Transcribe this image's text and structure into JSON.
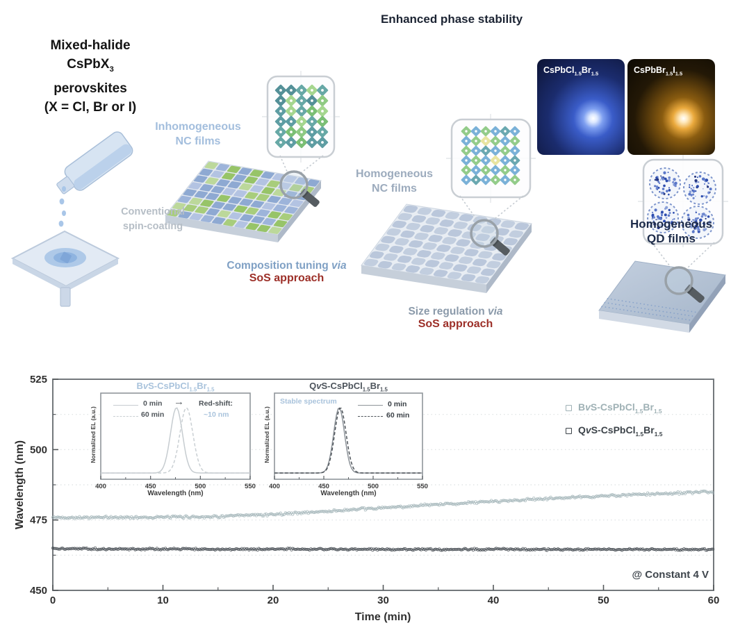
{
  "diagram": {
    "title": "Enhanced phase stability",
    "precursor_label": {
      "l1": "Mixed-halide",
      "formula": {
        "p1": "CsPbX",
        "s1": "3"
      },
      "l3": "perovskites",
      "l4": "(X = Cl, Br or I)"
    },
    "inhomogeneous_nc_label": {
      "l1": "Inhomogeneous",
      "l2": "NC films"
    },
    "conventional_label": {
      "l1": "Conventional",
      "l2": "spin-coating"
    },
    "composition_tuning": {
      "text": "Composition tuning",
      "via": "via",
      "approach": "SoS approach"
    },
    "homogeneous_nc_label": {
      "l1": "Homogeneous",
      "l2": "NC films"
    },
    "size_regulation": {
      "text": "Size regulation",
      "via": "via",
      "approach": "SoS approach"
    },
    "homogeneous_qd_label": {
      "l1": "Homogeneous",
      "l2": "QD films"
    },
    "photos": [
      {
        "formula": {
          "p1": "CsPbCl",
          "s1": "1.5",
          "p2": "Br",
          "s2": "1.5"
        }
      },
      {
        "formula": {
          "p1": "CsPbBr",
          "s1": "1.5",
          "p2": "I",
          "s2": "1.5"
        }
      }
    ],
    "colors": {
      "title": "#1c2433",
      "ink": "#141414",
      "steel_blue": "#a3bedd",
      "pale_gray": "#b6bec6",
      "blue_gray": "#7fa0c4",
      "sos_red": "#9c2f28",
      "slate": "#9cabbd",
      "gray_slate": "#8b9aaa",
      "navy": "#1d2b49"
    }
  },
  "chart_data": {
    "type": "scatter",
    "title": "",
    "xlabel": "Time (min)",
    "ylabel": "Wavelength (nm)",
    "xlim": [
      0,
      60
    ],
    "ylim": [
      450,
      525
    ],
    "xticks": [
      0,
      10,
      20,
      30,
      40,
      50,
      60
    ],
    "yticks": [
      450,
      475,
      500,
      525
    ],
    "x_minor_step": 5,
    "y_minor_step": 12.5,
    "grid": "faint dotted horizontal at minor steps",
    "legend_position": "top-right",
    "annotation": "@ Constant 4 V",
    "series": [
      {
        "name": "BvS-CsPbCl1.5Br1.5",
        "name_parts": {
          "p1": "B",
          "v": "v",
          "p2": "S-CsPbCl",
          "s1": "1.5",
          "p3": "Br",
          "s2": "1.5"
        },
        "color": "#9fb1b5",
        "bold": false,
        "x": [
          0,
          5,
          10,
          15,
          20,
          25,
          30,
          35,
          40,
          45,
          50,
          55,
          60
        ],
        "y": [
          475.9,
          475.9,
          476.0,
          476.2,
          477.0,
          478.1,
          479.3,
          480.5,
          481.6,
          482.6,
          483.5,
          484.3,
          485.0
        ],
        "noise": 0.55
      },
      {
        "name": "QvS-CsPbCl1.5Br1.5",
        "name_parts": {
          "p1": "Q",
          "v": "v",
          "p2": "S-CsPbCl",
          "s1": "1.5",
          "p3": "Br",
          "s2": "1.5"
        },
        "color": "#3c4349",
        "bold": true,
        "x": [
          0,
          5,
          10,
          15,
          20,
          25,
          30,
          35,
          40,
          45,
          50,
          55,
          60
        ],
        "y": [
          464.8,
          464.7,
          464.7,
          464.6,
          464.7,
          464.6,
          464.6,
          464.5,
          464.6,
          464.5,
          464.6,
          464.5,
          464.5
        ],
        "noise": 0.4
      }
    ],
    "insets": [
      {
        "title_parts": {
          "p1": "B",
          "v": "v",
          "p2": "S-CsPbCl",
          "s1": "1.5",
          "p3": "Br",
          "s2": "1.5"
        },
        "title_color": "#a9c3dc",
        "xlabel": "Wavelength (nm)",
        "ylabel": "Normalized EL (a.u.)",
        "xlim": [
          400,
          550
        ],
        "xticks": [
          400,
          450,
          500,
          550
        ],
        "legend": [
          {
            "label": "0 min",
            "style": "solid"
          },
          {
            "label": "60 min",
            "style": "dashed"
          }
        ],
        "annotation": {
          "arrow": "→",
          "line1": "Red-shift:",
          "line2": "~10 nm",
          "line2_color": "#a9c3dc"
        },
        "curves": [
          {
            "style": "solid",
            "center": 476,
            "sigma": 6,
            "color": "#c6ccd0"
          },
          {
            "style": "dashed",
            "center": 486,
            "sigma": 6.5,
            "color": "#c9cfd3"
          }
        ]
      },
      {
        "title_parts": {
          "p1": "Q",
          "v": "v",
          "p2": "S-CsPbCl",
          "s1": "1.5",
          "p3": "Br",
          "s2": "1.5"
        },
        "title_color": "#4d545c",
        "xlabel": "Wavelength (nm)",
        "ylabel": "Normalized EL (a.u.)",
        "xlim": [
          400,
          550
        ],
        "xticks": [
          400,
          450,
          500,
          550
        ],
        "legend": [
          {
            "label": "0 min",
            "style": "solid"
          },
          {
            "label": "60 min",
            "style": "dashed"
          }
        ],
        "annotation": {
          "line1": "Stable spectrum",
          "line1_color": "#a9c3dc"
        },
        "curves": [
          {
            "style": "solid",
            "center": 465.5,
            "sigma": 5.5,
            "color": "#8d9399"
          },
          {
            "style": "dashed",
            "center": 466.8,
            "sigma": 5.8,
            "color": "#4e545a"
          }
        ]
      }
    ]
  }
}
